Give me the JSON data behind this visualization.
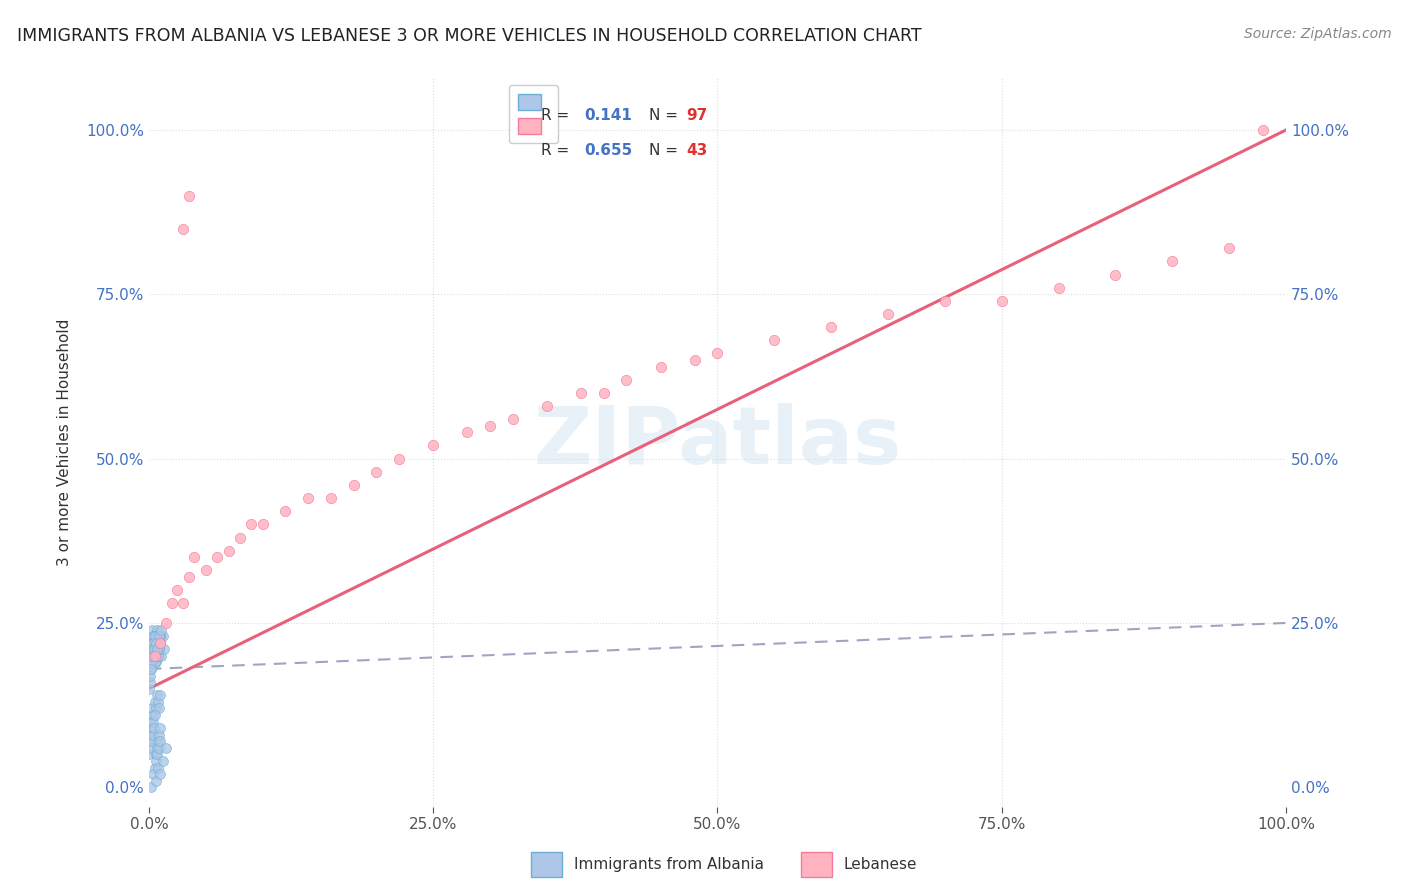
{
  "title": "IMMIGRANTS FROM ALBANIA VS LEBANESE 3 OR MORE VEHICLES IN HOUSEHOLD CORRELATION CHART",
  "source": "Source: ZipAtlas.com",
  "ylabel": "3 or more Vehicles in Household",
  "watermark": "ZIPatlas",
  "xlim": [
    0,
    100
  ],
  "ylim": [
    -3,
    108
  ],
  "xticks": [
    0,
    25,
    50,
    75,
    100
  ],
  "yticks": [
    0,
    25,
    50,
    75,
    100
  ],
  "xticklabels": [
    "0.0%",
    "25.0%",
    "50.0%",
    "75.0%",
    "100.0%"
  ],
  "yticklabels": [
    "0.0%",
    "25.0%",
    "50.0%",
    "75.0%",
    "100.0%"
  ],
  "albania_color": "#aec7e8",
  "albanian_edge": "#6baed6",
  "lebanese_color": "#ffb3c1",
  "lebanese_edge": "#f47b9a",
  "albania_R": 0.141,
  "albania_N": 97,
  "lebanese_R": 0.655,
  "lebanese_N": 43,
  "legend_label_1": "Immigrants from Albania",
  "legend_label_2": "Lebanese",
  "background_color": "#ffffff",
  "grid_color": "#dddddd",
  "albania_line_color": "#9999bb",
  "lebanese_line_color": "#e8607a",
  "albania_scatter_x": [
    0.1,
    0.15,
    0.2,
    0.25,
    0.3,
    0.35,
    0.4,
    0.45,
    0.5,
    0.55,
    0.6,
    0.65,
    0.7,
    0.75,
    0.8,
    0.9,
    1.0,
    1.1,
    1.2,
    1.3,
    0.05,
    0.08,
    0.12,
    0.18,
    0.22,
    0.28,
    0.32,
    0.38,
    0.42,
    0.48,
    0.52,
    0.58,
    0.62,
    0.68,
    0.72,
    0.78,
    0.82,
    0.88,
    0.92,
    0.98,
    0.1,
    0.2,
    0.3,
    0.4,
    0.5,
    0.6,
    0.7,
    0.8,
    0.9,
    1.0,
    0.15,
    0.25,
    0.35,
    0.45,
    0.55,
    0.65,
    0.75,
    0.85,
    0.95,
    1.05,
    0.1,
    0.2,
    0.3,
    0.4,
    0.5,
    0.6,
    0.7,
    0.8,
    0.9,
    1.0,
    0.05,
    0.1,
    0.15,
    0.2,
    0.25,
    0.3,
    0.35,
    0.4,
    0.45,
    0.5,
    0.55,
    0.6,
    0.65,
    0.7,
    0.75,
    0.8,
    0.85,
    0.9,
    0.95,
    1.0,
    0.2,
    0.4,
    0.6,
    0.8,
    1.0,
    1.2,
    1.5
  ],
  "albania_scatter_y": [
    22,
    18,
    20,
    24,
    21,
    19,
    23,
    20,
    22,
    21,
    19,
    22,
    24,
    20,
    23,
    21,
    22,
    20,
    23,
    21,
    15,
    18,
    16,
    20,
    19,
    22,
    21,
    23,
    20,
    22,
    19,
    21,
    23,
    20,
    22,
    21,
    20,
    22,
    21,
    23,
    17,
    19,
    21,
    20,
    22,
    21,
    23,
    22,
    21,
    23,
    18,
    20,
    22,
    21,
    23,
    22,
    21,
    23,
    22,
    24,
    8,
    10,
    12,
    11,
    13,
    12,
    14,
    13,
    12,
    14,
    5,
    7,
    6,
    8,
    7,
    9,
    8,
    10,
    9,
    11,
    3,
    5,
    4,
    6,
    5,
    7,
    6,
    8,
    7,
    9,
    0,
    2,
    1,
    3,
    2,
    4,
    6
  ],
  "lebanese_scatter_x": [
    0.5,
    1.0,
    1.5,
    2.0,
    2.5,
    3.0,
    3.5,
    4.0,
    5.0,
    6.0,
    7.0,
    8.0,
    9.0,
    10.0,
    12.0,
    14.0,
    16.0,
    18.0,
    20.0,
    22.0,
    25.0,
    28.0,
    30.0,
    32.0,
    35.0,
    38.0,
    40.0,
    42.0,
    45.0,
    48.0,
    50.0,
    55.0,
    60.0,
    65.0,
    70.0,
    75.0,
    80.0,
    85.0,
    90.0,
    95.0,
    3.0,
    3.5,
    98.0
  ],
  "lebanese_scatter_y": [
    20,
    22,
    25,
    28,
    30,
    28,
    32,
    35,
    33,
    35,
    36,
    38,
    40,
    40,
    42,
    44,
    44,
    46,
    48,
    50,
    52,
    54,
    55,
    56,
    58,
    60,
    60,
    62,
    64,
    65,
    66,
    68,
    70,
    72,
    74,
    74,
    76,
    78,
    80,
    82,
    85,
    90,
    100
  ],
  "albania_line_x": [
    0,
    100
  ],
  "albania_line_y": [
    18,
    25
  ],
  "lebanese_line_x": [
    0,
    100
  ],
  "lebanese_line_y": [
    15,
    100
  ]
}
